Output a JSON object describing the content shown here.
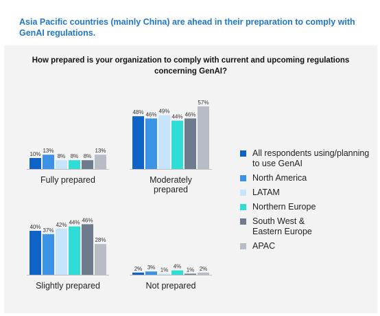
{
  "headline": "Asia Pacific countries (mainly China) are ahead in their preparation to comply with GenAI regulations.",
  "question": "How prepared is your organization to comply with current and upcoming regulations concerning GenAI?",
  "chart_data": {
    "type": "bar",
    "title": "How prepared is your organization to comply with current and upcoming regulations concerning GenAI?",
    "ylim": [
      0,
      60
    ],
    "grid": false,
    "legend_position": "right",
    "categories": [
      "Fully prepared",
      "Moderately prepared",
      "Slightly prepared",
      "Not prepared"
    ],
    "series": [
      {
        "name": "All respondents using/planning to use GenAI",
        "color": "#0f63c7",
        "values": [
          10,
          48,
          40,
          2
        ]
      },
      {
        "name": "North America",
        "color": "#3c93e6",
        "values": [
          13,
          46,
          37,
          3
        ]
      },
      {
        "name": "LATAM",
        "color": "#c6e4fb",
        "values": [
          8,
          49,
          42,
          1
        ]
      },
      {
        "name": "Northern Europe",
        "color": "#2fdcd6",
        "values": [
          8,
          44,
          44,
          4
        ]
      },
      {
        "name": "South West & Eastern Europe",
        "color": "#6e7b8c",
        "values": [
          8,
          46,
          46,
          1
        ]
      },
      {
        "name": "APAC",
        "color": "#b8bcc4",
        "values": [
          13,
          57,
          28,
          2
        ]
      }
    ],
    "category_display": [
      [
        "Fully prepared"
      ],
      [
        "Moderately",
        "prepared"
      ],
      [
        "Slightly prepared"
      ],
      [
        "Not prepared"
      ]
    ],
    "legend_display": [
      [
        "All respondents using/planning",
        "to use GenAI"
      ],
      [
        "North America"
      ],
      [
        "LATAM"
      ],
      [
        "Northern Europe"
      ],
      [
        "South West &",
        "Eastern Europe"
      ],
      [
        "APAC"
      ]
    ],
    "value_suffix": "%"
  }
}
